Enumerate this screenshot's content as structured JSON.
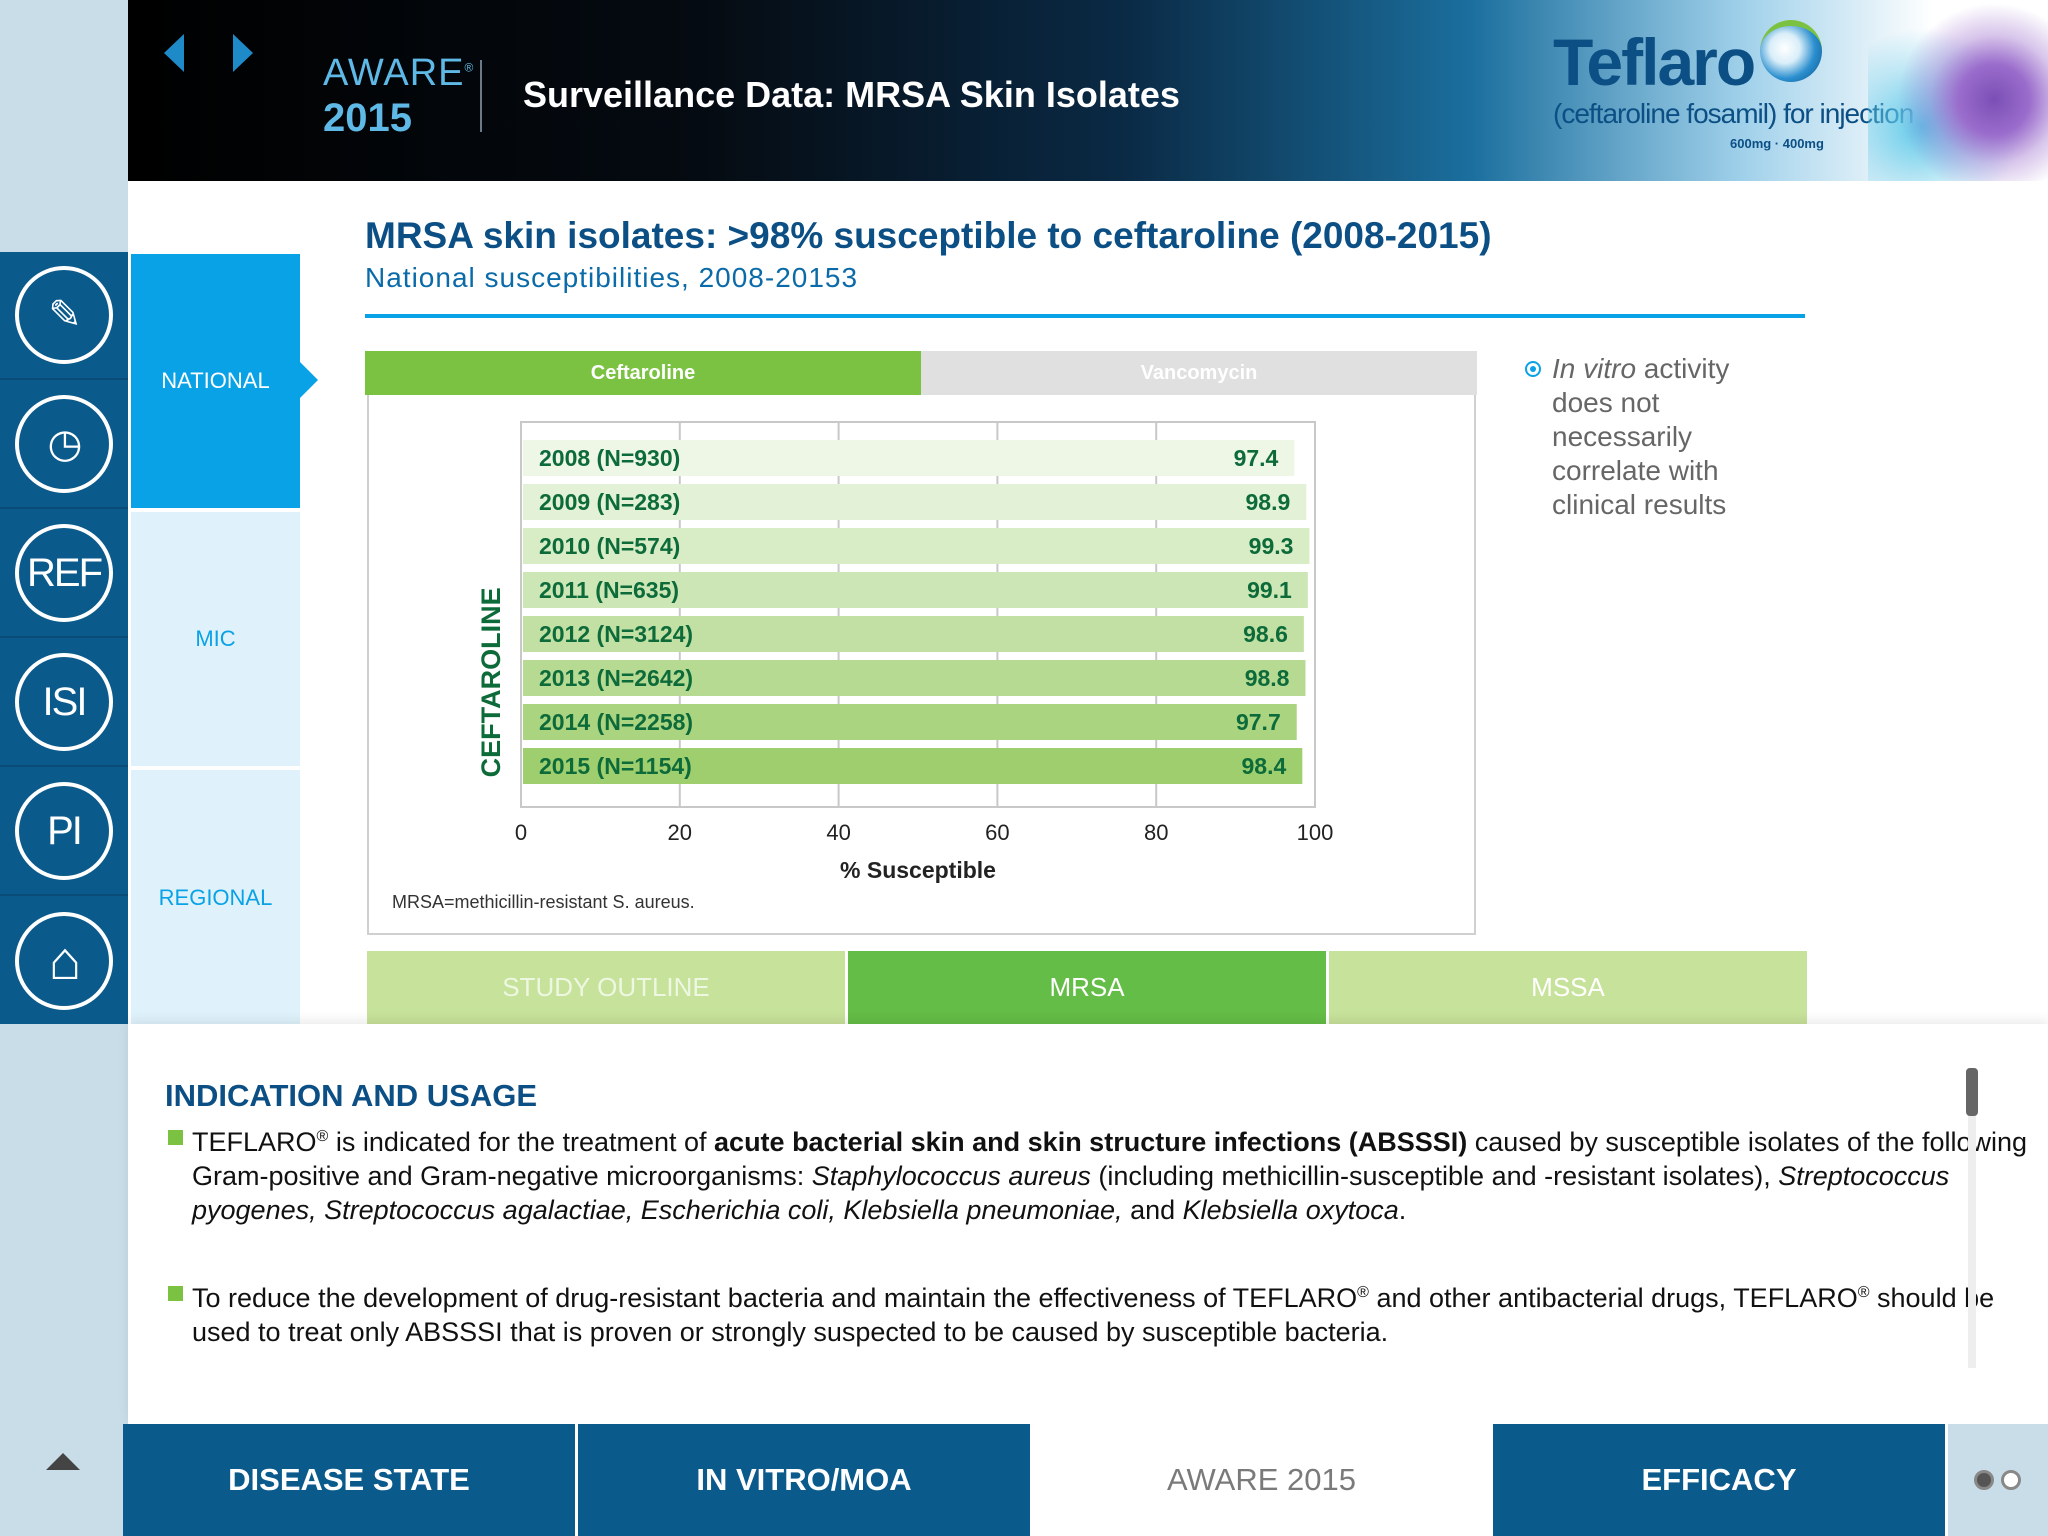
{
  "header": {
    "brand_word": "AWARE",
    "brand_mark": "®",
    "brand_year": "2015",
    "title": "Surveillance Data: MRSA Skin Isolates",
    "product_name": "Teflaro",
    "product_generic": "(ceftaroline fosamil) for injection",
    "product_dose": "600mg · 400mg"
  },
  "sidebar_icons": [
    {
      "name": "notes-icon",
      "glyph": "✎"
    },
    {
      "name": "dosing-icon",
      "glyph": "◷"
    },
    {
      "name": "ref-icon",
      "glyph": "REF"
    },
    {
      "name": "isi-icon",
      "glyph": "ISI"
    },
    {
      "name": "pi-icon",
      "glyph": "PI"
    },
    {
      "name": "home-icon",
      "glyph": "⌂"
    }
  ],
  "section_tabs": {
    "national": "NATIONAL",
    "mic": "MIC",
    "regional": "REGIONAL"
  },
  "content": {
    "title": "MRSA skin isolates: >98% susceptible to ceftaroline (2008-2015)",
    "subtitle": "National susceptibilities, 2008-20153",
    "drug_tabs": {
      "ceftaroline": "Ceftaroline",
      "vancomycin": "Vancomycin"
    },
    "footnote": "MRSA=methicillin-resistant S. aureus.",
    "side_note_italic": "In vitro",
    "side_note_rest": " activity does not necessarily correlate with clinical results"
  },
  "chart_data": {
    "type": "bar",
    "orientation": "horizontal",
    "categories": [
      "2008 (N=930)",
      "2009 (N=283)",
      "2010 (N=574)",
      "2011 (N=635)",
      "2012 (N=3124)",
      "2013 (N=2642)",
      "2014 (N=2258)",
      "2015 (N=1154)"
    ],
    "values": [
      97.4,
      98.9,
      99.3,
      99.1,
      98.6,
      98.8,
      97.7,
      98.4
    ],
    "value_labels": [
      "97.4",
      "98.9",
      "99.3",
      "99.1",
      "98.6",
      "98.8",
      "97.7",
      "98.4"
    ],
    "bar_colors": [
      "#eef6e6",
      "#e3f1d6",
      "#d8ecc6",
      "#cde6b5",
      "#c2e0a4",
      "#b7da93",
      "#abd481",
      "#9fce6f"
    ],
    "xlabel": "% Susceptible",
    "ylabel": "CEFTAROLINE",
    "xlim": [
      0,
      100
    ],
    "xticks": [
      "0",
      "20",
      "40",
      "60",
      "80",
      "100"
    ],
    "grid": true
  },
  "bottom_tabs": {
    "outline": "STUDY OUTLINE",
    "mrsa": "MRSA",
    "mssa": "MSSA"
  },
  "isi": {
    "heading": "INDICATION AND USAGE",
    "b1_a": "TEFLARO",
    "b1_reg": "®",
    "b1_b": " is indicated for the treatment of ",
    "b1_bold": "acute bacterial skin and skin structure infections (ABSSSI)",
    "b1_c": " caused by susceptible isolates of the following Gram-positive and Gram-negative microorganisms: ",
    "b1_italic1": "Staphylococcus aureus",
    "b1_d": " (including methicillin-susceptible and -resistant isolates), ",
    "b1_italic2": "Streptococcus pyogenes, Streptococcus agalactiae, Escherichia coli, Klebsiella pneumoniae,",
    "b1_e": " and ",
    "b1_italic3": "Klebsiella oxytoca",
    "b1_f": ".",
    "b2_a": "To reduce the development of drug-resistant bacteria and maintain the effectiveness of TEFLARO",
    "b2_reg": "®",
    "b2_b": " and other antibacterial drugs, TEFLARO",
    "b2_reg2": "®",
    "b2_c": " should be used to treat only ABSSSI that is proven or strongly suspected to be caused by susceptible bacteria."
  },
  "footer_tabs": {
    "disease": "DISEASE STATE",
    "invitro": "IN VITRO/MOA",
    "aware": "AWARE 2015",
    "efficacy": "EFFICACY"
  },
  "colors": {
    "brand_blue": "#0b4f85",
    "accent_cyan": "#0aa2e6",
    "nav_blue": "#0b5a8c",
    "accent_green": "#7cc242",
    "value_green": "#0d6b3a"
  }
}
